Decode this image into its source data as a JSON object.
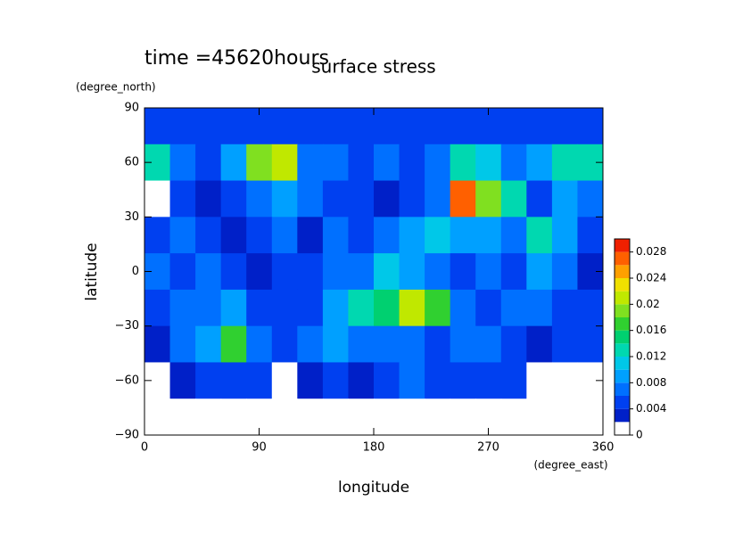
{
  "chart_data": {
    "type": "heatmap",
    "title": "surface stress",
    "subtitle": "time =45620hours",
    "x_label": "longitude",
    "x_unit": "(degree_east)",
    "y_label": "latitude",
    "y_unit": "(degree_north)",
    "x": [
      10,
      30,
      50,
      70,
      90,
      110,
      130,
      150,
      170,
      190,
      210,
      230,
      250,
      270,
      290,
      310,
      330,
      350
    ],
    "y": [
      80,
      60,
      40,
      20,
      0,
      -20,
      -40,
      -60,
      -80
    ],
    "z": [
      [
        0.004,
        0.004,
        0.004,
        0.004,
        0.004,
        0.004,
        0.004,
        0.004,
        0.004,
        0.004,
        0.004,
        0.004,
        0.004,
        0.004,
        0.004,
        0.004,
        0.004,
        0.004
      ],
      [
        0.012,
        0.006,
        0.004,
        0.008,
        0.018,
        0.02,
        0.006,
        0.006,
        0.004,
        0.006,
        0.004,
        0.006,
        0.012,
        0.01,
        0.006,
        0.008,
        0.012,
        0.012
      ],
      [
        0,
        0.004,
        0.002,
        0.004,
        0.006,
        0.008,
        0.006,
        0.004,
        0.004,
        0.002,
        0.004,
        0.006,
        0.026,
        0.018,
        0.012,
        0.004,
        0.008,
        0.006
      ],
      [
        0.004,
        0.006,
        0.004,
        0.002,
        0.004,
        0.006,
        0.002,
        0.006,
        0.004,
        0.006,
        0.008,
        0.01,
        0.008,
        0.008,
        0.006,
        0.012,
        0.008,
        0.004
      ],
      [
        0.006,
        0.004,
        0.006,
        0.004,
        0.002,
        0.004,
        0.004,
        0.006,
        0.006,
        0.01,
        0.008,
        0.006,
        0.004,
        0.006,
        0.004,
        0.008,
        0.006,
        0.002
      ],
      [
        0.004,
        0.006,
        0.006,
        0.008,
        0.004,
        0.004,
        0.004,
        0.008,
        0.012,
        0.014,
        0.02,
        0.016,
        0.006,
        0.004,
        0.006,
        0.006,
        0.004,
        0.004
      ],
      [
        0.002,
        0.006,
        0.008,
        0.016,
        0.006,
        0.004,
        0.006,
        0.008,
        0.006,
        0.006,
        0.006,
        0.004,
        0.006,
        0.006,
        0.004,
        0.002,
        0.004,
        0.004
      ],
      [
        0,
        0.002,
        0.004,
        0.004,
        0.004,
        0,
        0.002,
        0.004,
        0.002,
        0.004,
        0.006,
        0.004,
        0.004,
        0.004,
        0.004,
        0,
        0,
        0
      ],
      [
        0,
        0,
        0,
        0,
        0,
        0,
        0,
        0,
        0,
        0,
        0,
        0,
        0,
        0,
        0,
        0,
        0,
        0
      ]
    ],
    "xlim": [
      0,
      360
    ],
    "xticks": [
      0,
      90,
      180,
      270,
      360
    ],
    "ylim": [
      -90,
      90
    ],
    "yticks": [
      {
        "value": -90,
        "label": "−90"
      },
      {
        "value": -60,
        "label": "−60"
      },
      {
        "value": -30,
        "label": "−30"
      },
      0,
      30,
      60,
      90
    ],
    "levels": [
      0,
      0.002,
      0.004,
      0.006,
      0.008,
      0.01,
      0.012,
      0.014,
      0.016,
      0.018,
      0.02,
      0.022,
      0.024,
      0.026,
      0.028,
      0.03
    ],
    "colors": [
      "#ffffff",
      "#0020c8",
      "#0040f0",
      "#0070ff",
      "#00a0ff",
      "#00c8e8",
      "#00d8b0",
      "#00d070",
      "#30d030",
      "#80e020",
      "#c0e800",
      "#f0e000",
      "#ffa000",
      "#ff6000",
      "#f02000"
    ],
    "clim": [
      0,
      0.03
    ],
    "cticks": [
      0,
      0.004,
      0.008,
      0.012,
      0.016,
      0.02,
      0.024,
      0.028
    ]
  }
}
